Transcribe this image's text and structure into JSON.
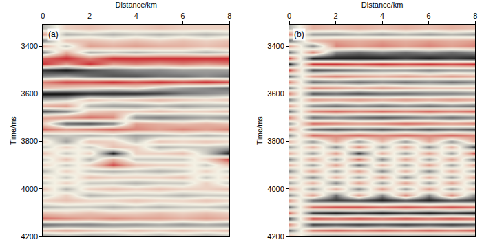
{
  "chart_data": [
    {
      "type": "heatmap",
      "label": "(a)",
      "x_title": "Distance/km",
      "y_title": "Time/ms",
      "x": [
        0,
        1,
        2,
        3,
        4,
        5,
        6,
        7,
        8
      ],
      "y": [
        3325,
        3350,
        3375,
        3400,
        3425,
        3450,
        3475,
        3500,
        3525,
        3550,
        3575,
        3600,
        3625,
        3650,
        3675,
        3700,
        3725,
        3750,
        3775,
        3800,
        3825,
        3850,
        3875,
        3900,
        3925,
        3950,
        3975,
        4000,
        4025,
        4050,
        4075,
        4100,
        4125,
        4150,
        4175,
        4200
      ],
      "z": [
        [
          -0.3,
          0.2,
          0.3,
          0.2,
          0.2,
          0.3,
          0.2,
          0.2,
          0.2
        ],
        [
          0.5,
          -0.3,
          -0.2,
          -0.3,
          -0.2,
          -0.3,
          -0.2,
          -0.3,
          -0.2
        ],
        [
          -0.6,
          0.3,
          0.3,
          0.2,
          0.3,
          0.2,
          0.3,
          0.2,
          0.3
        ],
        [
          0.4,
          -0.2,
          0.5,
          0.4,
          0.5,
          0.4,
          0.4,
          0.3,
          0.4
        ],
        [
          -0.5,
          0.4,
          -0.3,
          -0.2,
          -0.3,
          -0.2,
          -0.2,
          -0.3,
          -0.2
        ],
        [
          0.7,
          0.9,
          0.6,
          0.9,
          0.9,
          0.9,
          0.9,
          0.9,
          0.9
        ],
        [
          0.9,
          0.5,
          0.9,
          0.5,
          0.6,
          0.5,
          0.6,
          0.5,
          0.6
        ],
        [
          -0.8,
          -0.9,
          -0.7,
          -0.6,
          -0.5,
          -0.5,
          -0.4,
          -0.4,
          -0.4
        ],
        [
          -0.5,
          -0.4,
          -0.6,
          -0.7,
          -0.7,
          -0.6,
          -0.6,
          -0.5,
          -0.6
        ],
        [
          0.6,
          0.8,
          0.8,
          0.9,
          0.8,
          0.9,
          0.8,
          0.9,
          0.8
        ],
        [
          0.3,
          0.2,
          0.1,
          0.0,
          0.1,
          -0.2,
          -0.4,
          -0.5,
          -0.6
        ],
        [
          -1.0,
          -1.0,
          -0.9,
          -0.9,
          -0.9,
          -0.8,
          -0.6,
          -0.5,
          -0.4
        ],
        [
          -0.3,
          -0.2,
          0.3,
          0.2,
          0.3,
          0.4,
          0.3,
          0.2,
          0.3
        ],
        [
          0.4,
          0.5,
          -0.3,
          -0.4,
          -0.4,
          -0.3,
          -0.4,
          -0.3,
          -0.3
        ],
        [
          -0.7,
          -0.5,
          0.2,
          0.3,
          0.2,
          0.3,
          0.2,
          0.2,
          0.3
        ],
        [
          0.5,
          0.6,
          0.7,
          0.6,
          -0.5,
          -0.6,
          -0.5,
          -0.4,
          -0.5
        ],
        [
          0.2,
          -0.7,
          -0.8,
          -0.6,
          0.5,
          0.4,
          0.3,
          0.4,
          0.3
        ],
        [
          0.7,
          0.5,
          0.6,
          0.7,
          0.6,
          0.5,
          0.6,
          0.5,
          0.6
        ],
        [
          -0.3,
          -0.2,
          -0.3,
          -0.2,
          -0.4,
          -0.3,
          -0.2,
          -0.3,
          -0.2
        ],
        [
          0.2,
          -0.4,
          0.3,
          0.2,
          -0.2,
          0.3,
          0.2,
          0.3,
          0.2
        ],
        [
          -0.2,
          0.2,
          -0.2,
          0.3,
          0.2,
          -0.3,
          -0.2,
          -0.2,
          -0.3
        ],
        [
          0.3,
          -0.2,
          0.2,
          -0.9,
          0.2,
          0.2,
          0.3,
          -0.2,
          -0.9
        ],
        [
          -0.2,
          0.3,
          -0.3,
          0.4,
          -0.2,
          -0.2,
          -0.2,
          0.2,
          0.8
        ],
        [
          0.2,
          -0.2,
          0.2,
          0.8,
          0.3,
          0.2,
          0.2,
          -0.2,
          0.3
        ],
        [
          -0.3,
          0.2,
          -0.2,
          -0.3,
          -0.2,
          -0.3,
          -0.2,
          0.2,
          -0.2
        ],
        [
          0.2,
          -0.2,
          0.3,
          0.2,
          0.2,
          0.2,
          0.3,
          -0.2,
          0.2
        ],
        [
          -0.2,
          0.2,
          -0.2,
          -0.2,
          -0.3,
          -0.2,
          -0.2,
          0.2,
          -0.2
        ],
        [
          0.3,
          -0.3,
          0.2,
          0.3,
          0.2,
          0.3,
          0.2,
          0.2,
          0.3
        ],
        [
          -0.2,
          0.2,
          -0.3,
          -0.2,
          -0.2,
          -0.2,
          -0.3,
          -0.2,
          -0.2
        ],
        [
          0.2,
          0.3,
          0.2,
          0.2,
          0.3,
          0.2,
          0.2,
          0.3,
          0.2
        ],
        [
          -0.3,
          -0.2,
          -0.2,
          -0.3,
          -0.2,
          -0.3,
          -0.2,
          -0.2,
          -0.3
        ],
        [
          0.3,
          0.2,
          0.3,
          0.2,
          0.2,
          0.3,
          0.2,
          0.3,
          0.2
        ],
        [
          0.7,
          0.6,
          0.5,
          0.6,
          0.5,
          0.5,
          0.4,
          0.5,
          0.4
        ],
        [
          -0.7,
          -0.6,
          -0.6,
          -0.5,
          -0.5,
          -0.4,
          -0.5,
          -0.4,
          -0.5
        ],
        [
          0.3,
          0.4,
          0.3,
          0.2,
          0.3,
          0.2,
          0.3,
          0.2,
          0.3
        ],
        [
          -0.5,
          -0.4,
          -0.5,
          -0.4,
          -0.3,
          -0.4,
          -0.3,
          -0.4,
          -0.3
        ]
      ],
      "zlim": [
        -1,
        1
      ],
      "xlim": [
        0,
        8
      ],
      "xticks": [
        0,
        2,
        4,
        6,
        8
      ],
      "ylim": [
        4200,
        3310
      ],
      "yticks": [
        3400,
        3600,
        3800,
        4000,
        4200
      ]
    },
    {
      "type": "heatmap",
      "label": "(b)",
      "x_title": "Distance/km",
      "y_title": "Time/ms",
      "x": [
        0,
        1,
        2,
        3,
        4,
        5,
        6,
        7,
        8
      ],
      "y": [
        3325,
        3350,
        3375,
        3400,
        3425,
        3450,
        3475,
        3500,
        3525,
        3550,
        3575,
        3600,
        3625,
        3650,
        3675,
        3700,
        3725,
        3750,
        3775,
        3800,
        3825,
        3850,
        3875,
        3900,
        3925,
        3950,
        3975,
        4000,
        4025,
        4050,
        4075,
        4100,
        4125,
        4150,
        4175,
        4200
      ],
      "z": [
        [
          -0.3,
          0.4,
          0.3,
          0.4,
          0.3,
          0.4,
          0.3,
          0.4,
          0.3
        ],
        [
          0.6,
          -0.4,
          -0.4,
          -0.3,
          -0.4,
          -0.3,
          -0.4,
          -0.3,
          -0.4
        ],
        [
          -0.7,
          0.4,
          0.5,
          0.4,
          0.5,
          0.4,
          0.5,
          0.4,
          0.5
        ],
        [
          0.5,
          -0.5,
          0.6,
          0.5,
          0.6,
          0.5,
          0.6,
          0.5,
          0.6
        ],
        [
          -0.6,
          0.6,
          -0.5,
          -0.6,
          -0.5,
          -0.6,
          -0.5,
          -0.6,
          -0.5
        ],
        [
          0.8,
          -0.9,
          -0.9,
          -0.9,
          -0.9,
          -0.8,
          -0.9,
          -0.8,
          -0.9
        ],
        [
          -0.9,
          0.9,
          0.9,
          0.8,
          0.9,
          0.8,
          0.9,
          0.8,
          0.9
        ],
        [
          0.8,
          -0.7,
          -0.6,
          -0.5,
          -0.4,
          -0.4,
          -0.5,
          -0.4,
          -0.4
        ],
        [
          -0.6,
          0.5,
          0.6,
          0.5,
          0.4,
          0.5,
          0.4,
          0.5,
          0.4
        ],
        [
          0.6,
          -0.6,
          -0.5,
          -0.6,
          -0.5,
          -0.6,
          -0.5,
          -0.6,
          -0.5
        ],
        [
          -0.5,
          0.6,
          0.5,
          0.4,
          0.5,
          0.4,
          0.3,
          0.3,
          0.3
        ],
        [
          0.7,
          -0.8,
          -0.7,
          -0.8,
          -0.7,
          -0.7,
          -0.6,
          -0.6,
          -0.5
        ],
        [
          -0.6,
          0.6,
          0.5,
          0.6,
          0.5,
          0.6,
          0.5,
          0.6,
          0.5
        ],
        [
          0.5,
          -0.5,
          -0.6,
          -0.5,
          -0.6,
          -0.5,
          -0.6,
          -0.5,
          -0.6
        ],
        [
          -0.6,
          0.6,
          0.7,
          0.6,
          0.7,
          0.6,
          0.7,
          0.6,
          0.7
        ],
        [
          0.7,
          -0.7,
          -0.6,
          -0.7,
          -0.8,
          -0.7,
          -0.6,
          -0.7,
          -0.6
        ],
        [
          -0.5,
          0.8,
          0.7,
          0.6,
          0.7,
          0.8,
          0.7,
          0.6,
          0.7
        ],
        [
          0.6,
          -0.6,
          -0.7,
          -0.6,
          -0.7,
          -0.6,
          -0.7,
          -0.6,
          -0.7
        ],
        [
          -0.5,
          0.7,
          0.6,
          0.7,
          0.6,
          0.7,
          0.6,
          0.7,
          0.6
        ],
        [
          0.4,
          -0.5,
          0.4,
          -0.5,
          0.3,
          -0.5,
          0.4,
          -0.5,
          0.4
        ],
        [
          -0.4,
          0.4,
          -0.5,
          0.6,
          -0.4,
          0.5,
          -0.5,
          0.4,
          -0.8
        ],
        [
          0.4,
          -0.4,
          0.5,
          -0.8,
          0.4,
          -0.4,
          0.5,
          -0.4,
          0.8
        ],
        [
          -0.5,
          0.5,
          -0.4,
          0.7,
          -0.5,
          0.5,
          -0.4,
          0.5,
          -0.6
        ],
        [
          0.4,
          -0.4,
          0.5,
          -0.6,
          0.4,
          -0.4,
          0.5,
          -0.4,
          0.5
        ],
        [
          -0.5,
          0.5,
          -0.4,
          0.5,
          -0.5,
          0.4,
          -0.5,
          0.4,
          -0.4
        ],
        [
          0.4,
          -0.5,
          0.4,
          -0.4,
          0.5,
          -0.5,
          0.4,
          -0.4,
          0.5
        ],
        [
          -0.4,
          0.4,
          -0.5,
          0.5,
          -0.4,
          0.5,
          -0.4,
          0.5,
          -0.4
        ],
        [
          0.5,
          -0.4,
          0.4,
          -0.5,
          0.5,
          -0.4,
          0.5,
          -0.4,
          0.4
        ],
        [
          -0.5,
          0.5,
          -0.6,
          0.5,
          -0.5,
          0.6,
          -0.5,
          0.6,
          -0.5
        ],
        [
          0.6,
          -0.7,
          -0.8,
          -0.8,
          -0.9,
          -0.8,
          -0.9,
          -0.8,
          -0.8
        ],
        [
          -0.6,
          0.7,
          0.8,
          0.8,
          0.7,
          0.8,
          0.7,
          0.8,
          0.7
        ],
        [
          0.7,
          -0.8,
          -0.9,
          -0.8,
          -0.9,
          -0.8,
          -0.9,
          -0.8,
          -0.9
        ],
        [
          -0.8,
          0.9,
          0.8,
          0.9,
          0.8,
          0.9,
          0.8,
          0.9,
          0.8
        ],
        [
          0.7,
          -0.9,
          -0.8,
          -0.9,
          -0.8,
          -0.9,
          -0.8,
          -0.9,
          -0.8
        ],
        [
          -0.6,
          0.6,
          0.7,
          0.6,
          0.7,
          0.6,
          0.7,
          0.6,
          0.7
        ],
        [
          0.5,
          -0.5,
          -0.6,
          -0.5,
          -0.6,
          -0.5,
          -0.6,
          -0.5,
          -0.6
        ]
      ],
      "zlim": [
        -1,
        1
      ],
      "xlim": [
        0,
        8
      ],
      "xticks": [
        0,
        2,
        4,
        6,
        8
      ],
      "ylim": [
        4200,
        3310
      ],
      "yticks": [
        3400,
        3600,
        3800,
        4000,
        4200
      ]
    }
  ]
}
